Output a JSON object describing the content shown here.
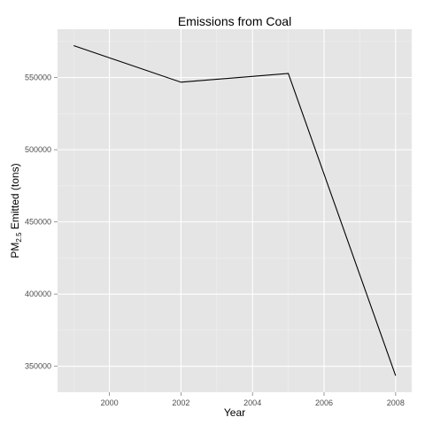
{
  "chart_data": {
    "type": "line",
    "title": "Emissions from Coal",
    "xlabel": "Year",
    "ylabel": {
      "prefix": "PM",
      "subscript": "2.5",
      "suffix": " Emitted (tons)"
    },
    "x": [
      1999,
      2002,
      2005,
      2008
    ],
    "series": [
      {
        "values": [
          572126.5,
          546789.2,
          552881.5,
          343432.2
        ]
      }
    ],
    "xlim": [
      1998.55,
      2008.45
    ],
    "ylim": [
      332000,
      583500
    ],
    "x_ticks": [
      2000,
      2002,
      2004,
      2006,
      2008
    ],
    "x_tick_labels": [
      "2000",
      "2002",
      "2004",
      "2006",
      "2008"
    ],
    "y_ticks": [
      350000,
      400000,
      450000,
      500000,
      550000
    ],
    "y_tick_labels": [
      "350000",
      "400000",
      "450000",
      "500000",
      "550000"
    ],
    "grid": true,
    "legend": "none",
    "colors": {
      "panel": "#e5e5e5",
      "grid": "#ffffff",
      "line": "#000000"
    }
  }
}
